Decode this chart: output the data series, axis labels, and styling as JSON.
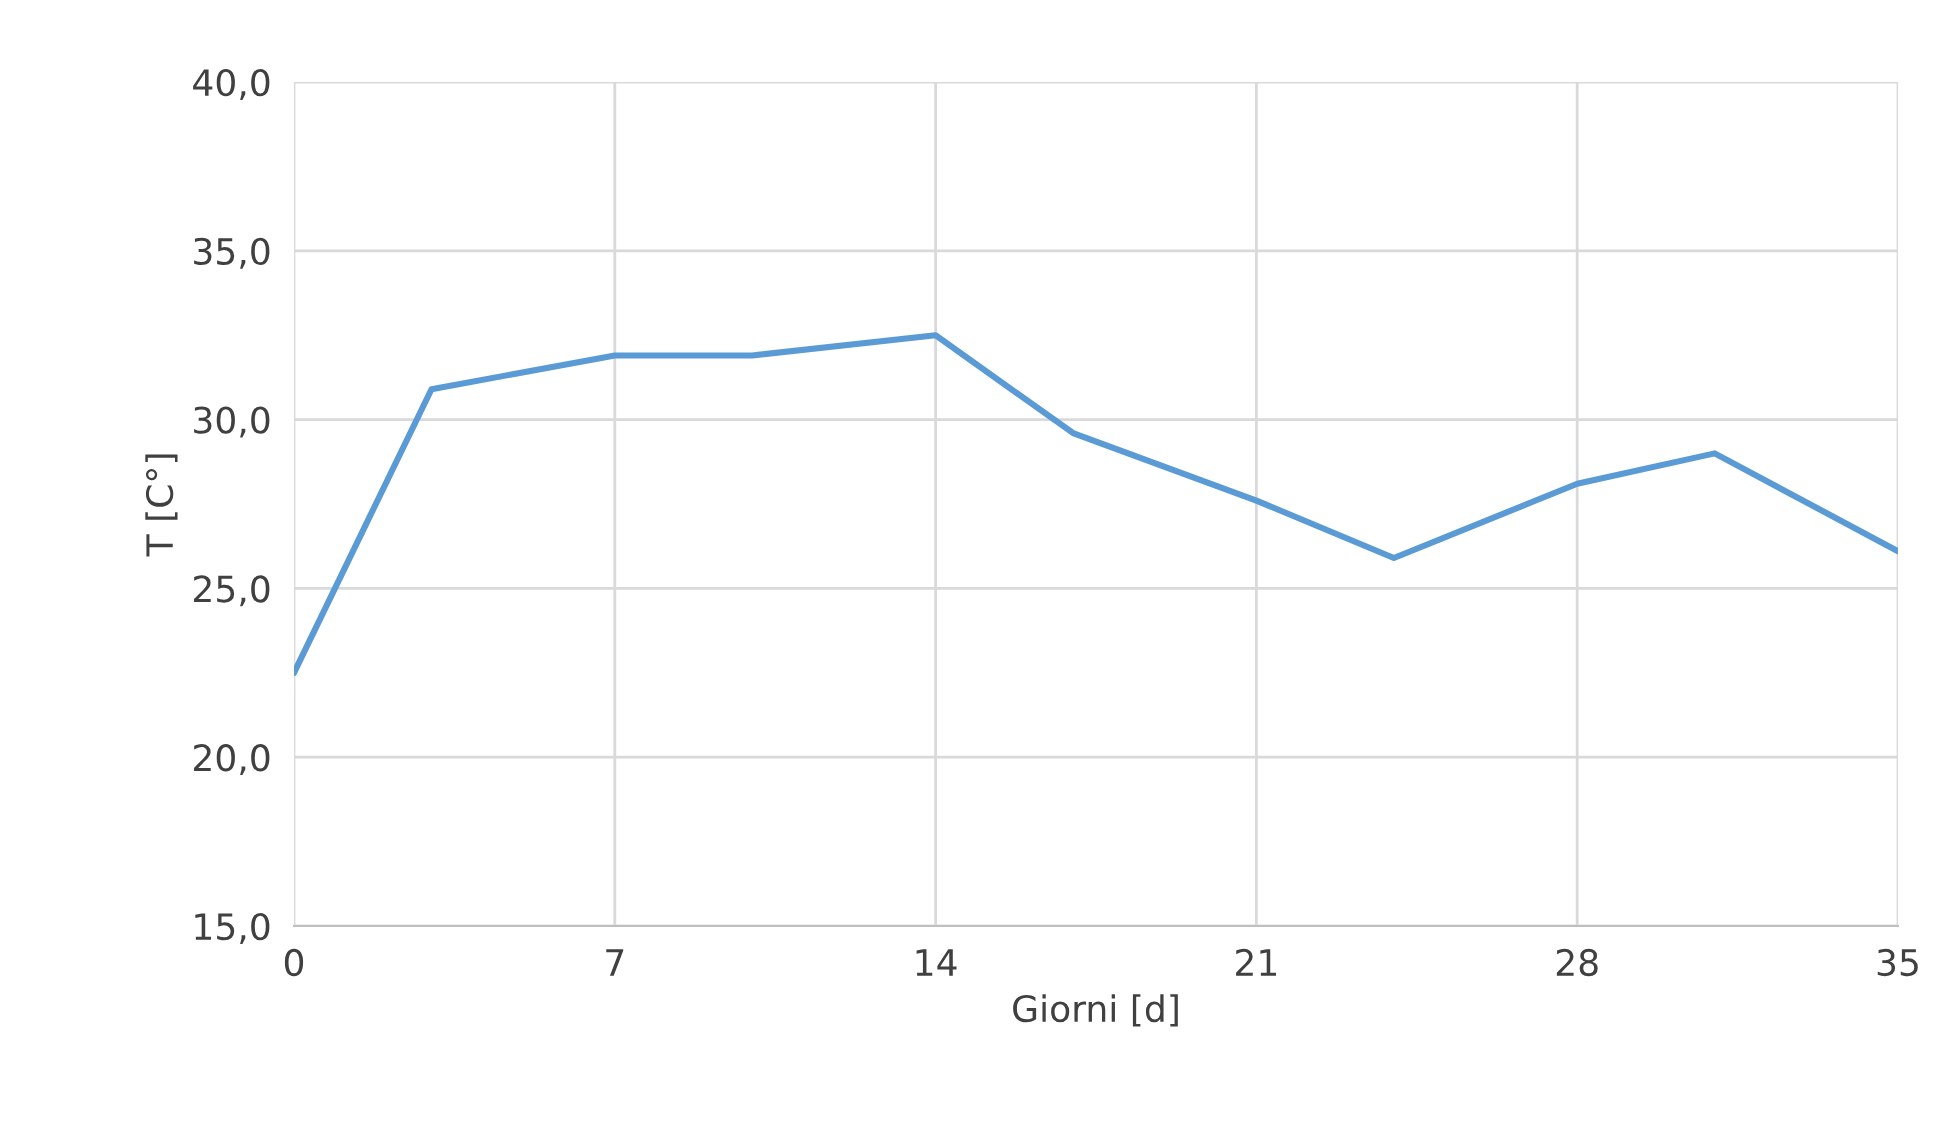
{
  "chart_data": {
    "type": "line",
    "xlabel": "Giorni [d]",
    "ylabel": "T [C°]",
    "x": [
      0,
      3,
      7,
      10,
      14,
      17,
      21,
      24,
      28,
      31,
      35
    ],
    "series": [
      {
        "color": "#5b9bd5",
        "values": [
          22.5,
          30.9,
          31.9,
          31.9,
          32.5,
          29.6,
          27.6,
          25.9,
          28.1,
          29.0,
          26.1
        ]
      }
    ],
    "xlim": [
      0,
      35
    ],
    "xticks": [
      0,
      7,
      14,
      21,
      28,
      35
    ],
    "ylim": [
      15,
      40
    ],
    "yticks": [
      {
        "value": 15,
        "label": "15,0"
      },
      {
        "value": 20,
        "label": "20,0"
      },
      {
        "value": 25,
        "label": "25,0"
      },
      {
        "value": 30,
        "label": "30,0"
      },
      {
        "value": 35,
        "label": "35,0"
      },
      {
        "value": 40,
        "label": "40,0"
      }
    ],
    "grid": true,
    "marker": "none",
    "line_style": "solid"
  }
}
